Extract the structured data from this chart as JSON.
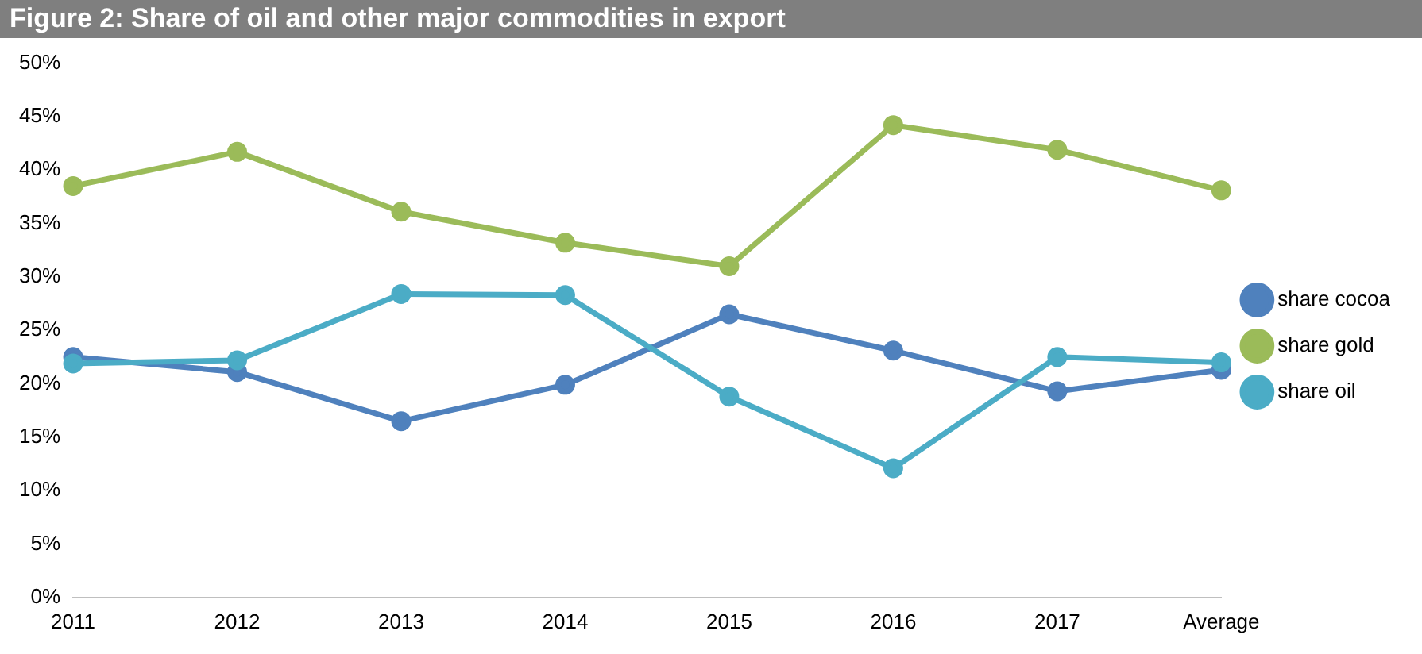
{
  "chart_data": {
    "type": "line",
    "title": "Figure 2: Share of oil and other major commodities in export",
    "categories": [
      "2011",
      "2012",
      "2013",
      "2014",
      "2015",
      "2016",
      "2017",
      "Average"
    ],
    "series": [
      {
        "name": "share cocoa",
        "color": "#4f81bd",
        "values": [
          22.5,
          21.1,
          16.5,
          19.9,
          26.5,
          23.1,
          19.3,
          21.3
        ]
      },
      {
        "name": "share gold",
        "color": "#9bbb59",
        "values": [
          38.5,
          41.7,
          36.1,
          33.2,
          31.0,
          44.2,
          41.9,
          38.1
        ]
      },
      {
        "name": "share oil",
        "color": "#4bacc6",
        "values": [
          21.9,
          22.2,
          28.4,
          28.3,
          18.8,
          12.1,
          22.5,
          22.0
        ]
      }
    ],
    "ylim": [
      0,
      50
    ],
    "yticks": [
      {
        "value": 0,
        "label": "0%"
      },
      {
        "value": 5,
        "label": "5%"
      },
      {
        "value": 10,
        "label": "10%"
      },
      {
        "value": 15,
        "label": "15%"
      },
      {
        "value": 20,
        "label": "20%"
      },
      {
        "value": 25,
        "label": "25%"
      },
      {
        "value": 30,
        "label": "30%"
      },
      {
        "value": 35,
        "label": "35%"
      },
      {
        "value": 40,
        "label": "40%"
      },
      {
        "value": 45,
        "label": "45%"
      },
      {
        "value": 50,
        "label": "50%"
      }
    ],
    "grid": false,
    "legend": "right",
    "marker": "circle",
    "line_style": "solid"
  }
}
